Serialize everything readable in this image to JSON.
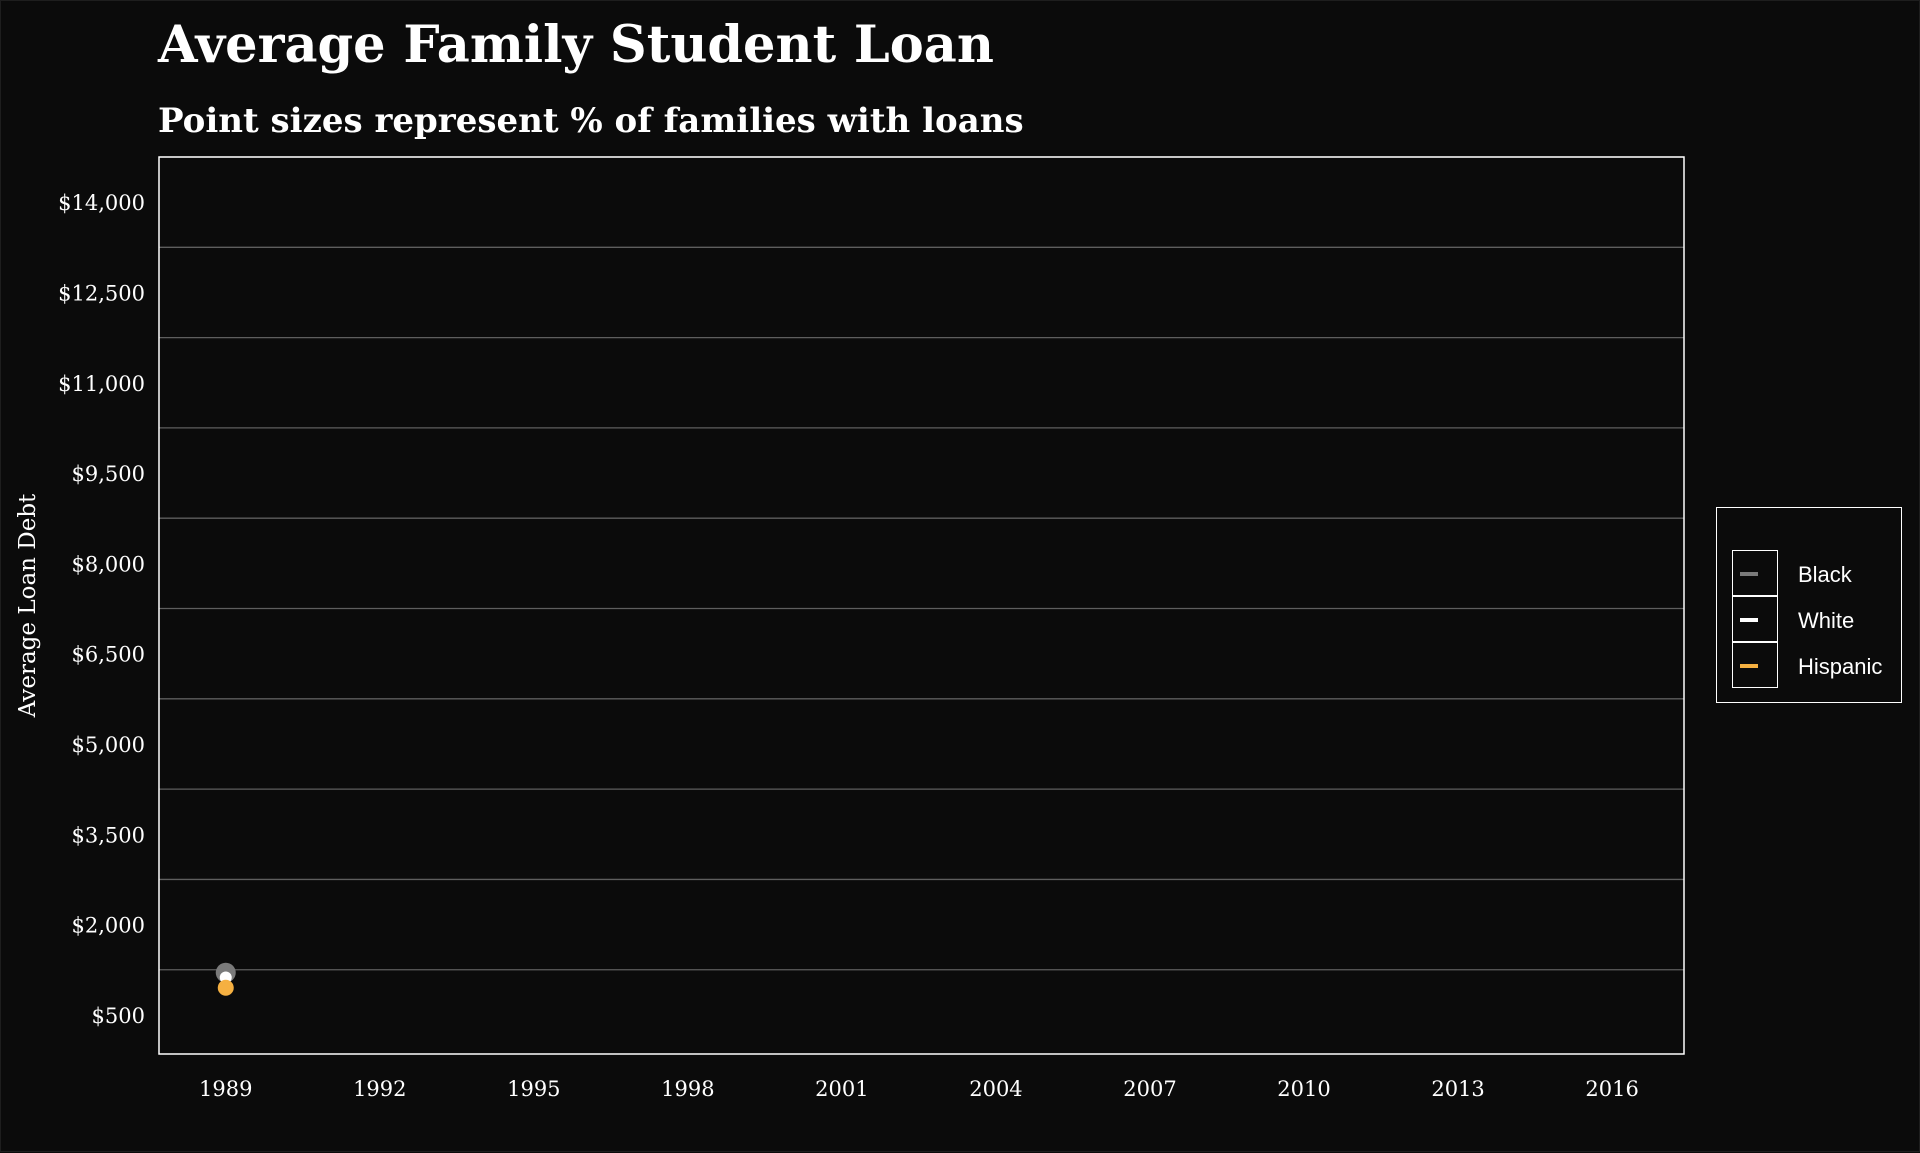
{
  "chart_data": {
    "type": "scatter",
    "title": "Average Family Student Loan",
    "subtitle": "Point sizes represent % of families with loans",
    "xlabel": "",
    "ylabel": "Average Loan Debt",
    "x_ticks": [
      "1989",
      "1992",
      "1995",
      "1998",
      "2001",
      "2004",
      "2007",
      "2010",
      "2013",
      "2016"
    ],
    "y_ticks": [
      "$500",
      "$2,000",
      "$3,500",
      "$5,000",
      "$6,500",
      "$8,000",
      "$9,500",
      "$11,000",
      "$12,500",
      "$14,000"
    ],
    "xlim": [
      1987.7,
      2017.4
    ],
    "ylim": [
      -150,
      14750
    ],
    "grid": true,
    "legend_position": "right",
    "series": [
      {
        "name": "Black",
        "color": "#7a7a7a",
        "points": [
          {
            "x": 1989,
            "y": 1200
          }
        ]
      },
      {
        "name": "White",
        "color": "#ffffff",
        "points": [
          {
            "x": 1989,
            "y": 1120
          }
        ]
      },
      {
        "name": "Hispanic",
        "color": "#f5b041",
        "points": [
          {
            "x": 1989,
            "y": 950
          }
        ]
      }
    ]
  },
  "colors": {
    "background": "#0b0b0b",
    "text": "#ffffff",
    "gridline": "#5e5e5e"
  }
}
